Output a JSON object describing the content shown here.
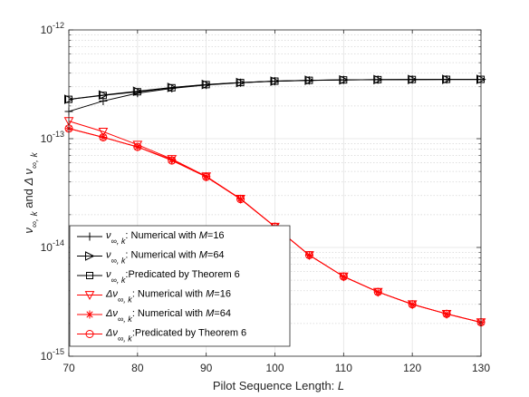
{
  "chart_data": {
    "type": "line",
    "xlabel": "Pilot Sequence Length:",
    "xlabel_var": "L",
    "ylabel": [
      "ν",
      "∞, k",
      " and ",
      "Δ ν",
      "∞, k"
    ],
    "xlim": [
      70,
      130
    ],
    "xticks": [
      70,
      80,
      90,
      100,
      110,
      120,
      130
    ],
    "ylim": [
      1e-15,
      1e-12
    ],
    "yscale": "log",
    "yticks": [
      {
        "value": 1e-15,
        "base": "10",
        "exp": "-15"
      },
      {
        "value": 1e-14,
        "base": "10",
        "exp": "-14"
      },
      {
        "value": 1e-13,
        "base": "10",
        "exp": "-13"
      },
      {
        "value": 1e-12,
        "base": "10",
        "exp": "-12"
      }
    ],
    "grid": true,
    "legend_position": "bottom-left",
    "x": [
      70,
      75,
      80,
      85,
      90,
      95,
      100,
      105,
      110,
      115,
      120,
      125,
      130
    ],
    "series": [
      {
        "name_sym": "ν",
        "name_sub": "∞, k",
        "name_rest": ": Numerical with ",
        "name_var": "M",
        "name_tail": "=16",
        "color": "#000000",
        "marker": "plus",
        "values": [
          1.78e-13,
          2.22e-13,
          2.62e-13,
          2.9e-13,
          3.12e-13,
          3.27e-13,
          3.37e-13,
          3.43e-13,
          3.47e-13,
          3.49e-13,
          3.5e-13,
          3.51e-13,
          3.51e-13
        ]
      },
      {
        "name_sym": "ν",
        "name_sub": "∞, k",
        "name_rest": ": Numerical with ",
        "name_var": "M",
        "name_tail": "=64",
        "color": "#000000",
        "marker": "triangle-right",
        "values": [
          2.3e-13,
          2.52e-13,
          2.73e-13,
          2.96e-13,
          3.15e-13,
          3.28e-13,
          3.38e-13,
          3.44e-13,
          3.47e-13,
          3.49e-13,
          3.5e-13,
          3.51e-13,
          3.51e-13
        ]
      },
      {
        "name_sym": "ν",
        "name_sub": "∞, k",
        "name_rest": ":Predicated by Theorem 6",
        "name_var": "",
        "name_tail": "",
        "color": "#000000",
        "marker": "square",
        "values": [
          2.3e-13,
          2.5e-13,
          2.7e-13,
          2.94e-13,
          3.14e-13,
          3.28e-13,
          3.38e-13,
          3.44e-13,
          3.47e-13,
          3.49e-13,
          3.5e-13,
          3.51e-13,
          3.51e-13
        ]
      },
      {
        "name_sym": "Δν",
        "name_sub": "∞, k",
        "name_rest": ": Numerical with ",
        "name_var": "M",
        "name_tail": "=16",
        "color": "#ff0000",
        "marker": "triangle-down",
        "values": [
          1.45e-13,
          1.16e-13,
          8.8e-14,
          6.5e-14,
          4.5e-14,
          2.8e-14,
          1.55e-14,
          8.5e-15,
          5.4e-15,
          3.9e-15,
          3e-15,
          2.45e-15,
          2.05e-15
        ]
      },
      {
        "name_sym": "Δν",
        "name_sub": "∞, k",
        "name_rest": ": Numerical with ",
        "name_var": "M",
        "name_tail": "=64",
        "color": "#ff0000",
        "marker": "asterisk",
        "values": [
          1.24e-13,
          1.03e-13,
          8.4e-14,
          6.4e-14,
          4.5e-14,
          2.8e-14,
          1.55e-14,
          8.5e-15,
          5.4e-15,
          3.9e-15,
          3e-15,
          2.45e-15,
          2.05e-15
        ]
      },
      {
        "name_sym": "Δν",
        "name_sub": "∞, k",
        "name_rest": ":Predicated by Theorem 6",
        "name_var": "",
        "name_tail": "",
        "color": "#ff0000",
        "marker": "circle",
        "values": [
          1.24e-13,
          1.03e-13,
          8.4e-14,
          6.3e-14,
          4.45e-14,
          2.78e-14,
          1.55e-14,
          8.5e-15,
          5.4e-15,
          3.9e-15,
          3e-15,
          2.45e-15,
          2.05e-15
        ]
      }
    ]
  }
}
